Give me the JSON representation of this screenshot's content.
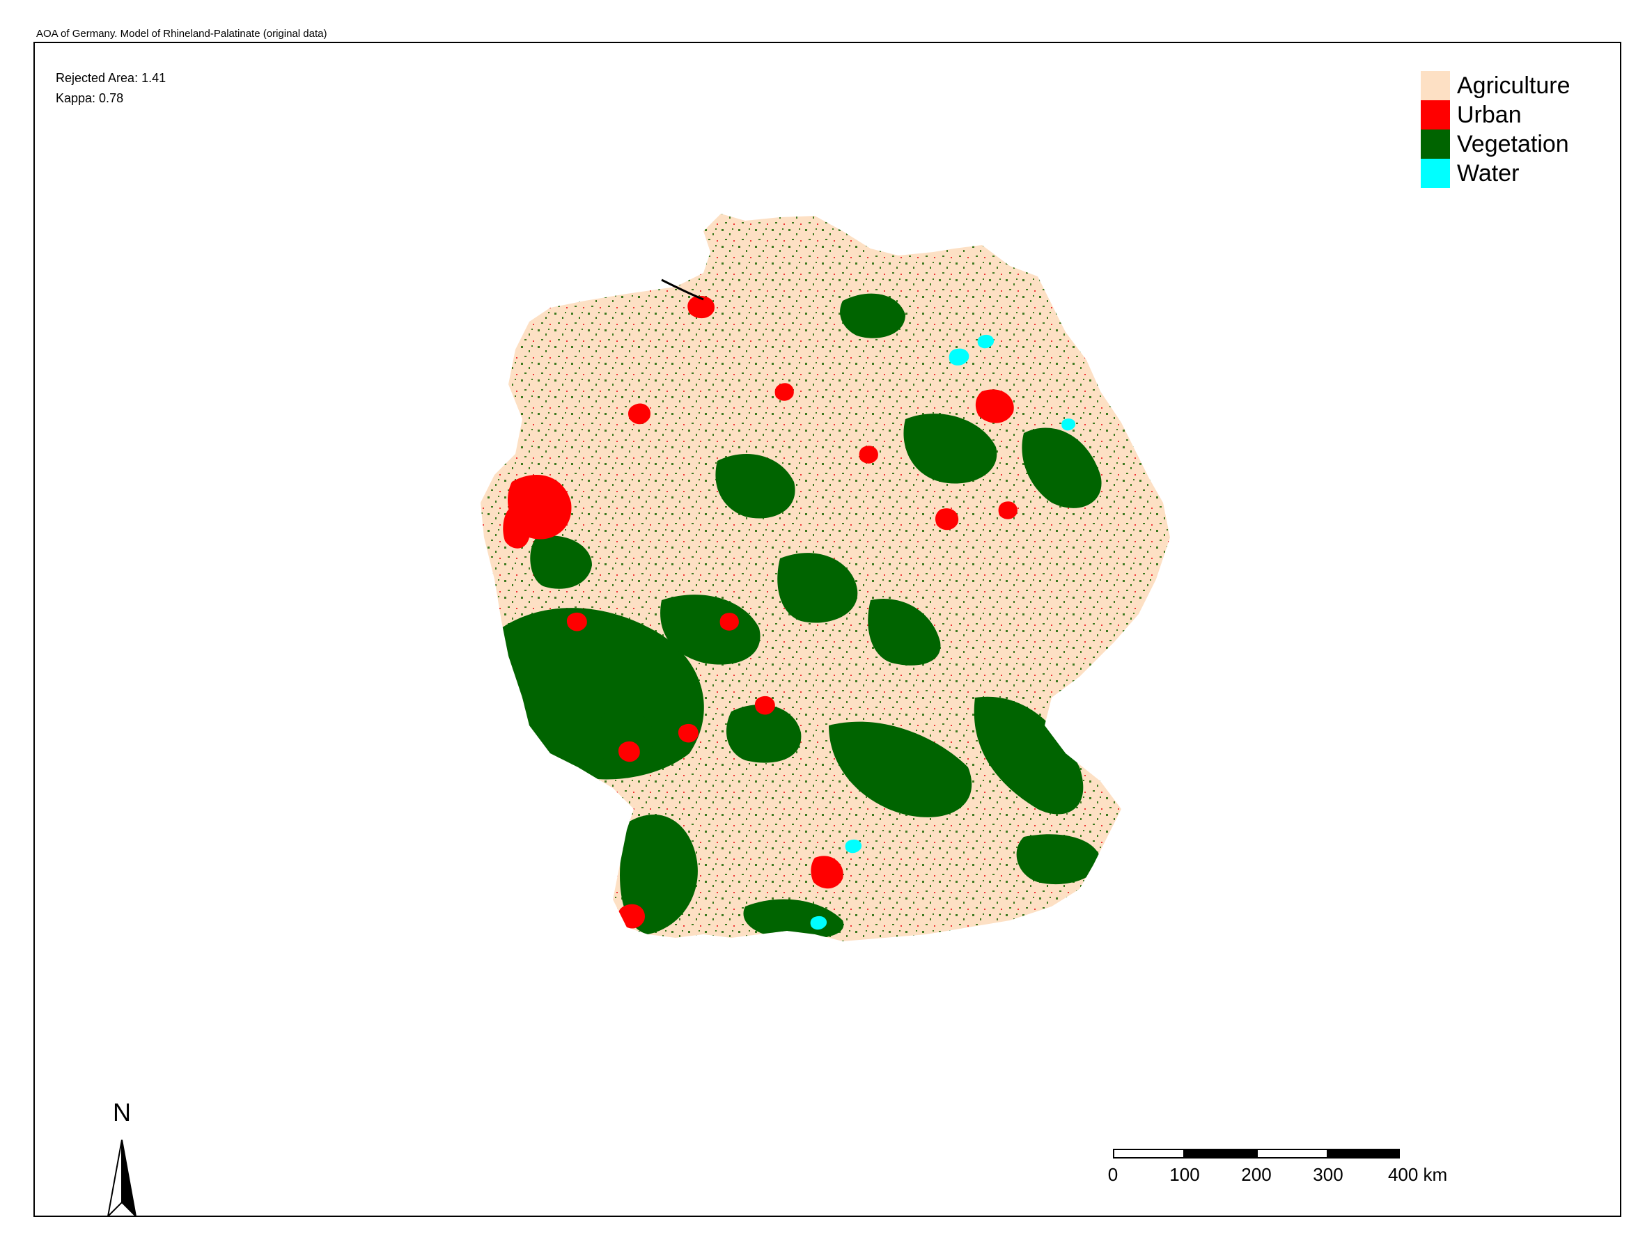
{
  "title": "AOA of Germany. Model of Rhineland-Palatinate (original data)",
  "stats": {
    "rejected_area_label": "Rejected Area: 1.41",
    "kappa_label": "Kappa: 0.78"
  },
  "legend": [
    {
      "label": "Agriculture",
      "color": "#fde0c4"
    },
    {
      "label": "Urban",
      "color": "#ff0000"
    },
    {
      "label": "Vegetation",
      "color": "#006400"
    },
    {
      "label": "Water",
      "color": "#00ffff"
    }
  ],
  "north_arrow": {
    "letter": "N",
    "icon": "north-arrow-icon"
  },
  "scale_bar": {
    "ticks": [
      "0",
      "100",
      "200",
      "300",
      "400 km"
    ],
    "segment_colors": [
      "#ffffff",
      "#000000",
      "#ffffff",
      "#000000"
    ]
  },
  "map": {
    "region": "Germany",
    "classes": [
      "Agriculture",
      "Urban",
      "Vegetation",
      "Water"
    ]
  }
}
